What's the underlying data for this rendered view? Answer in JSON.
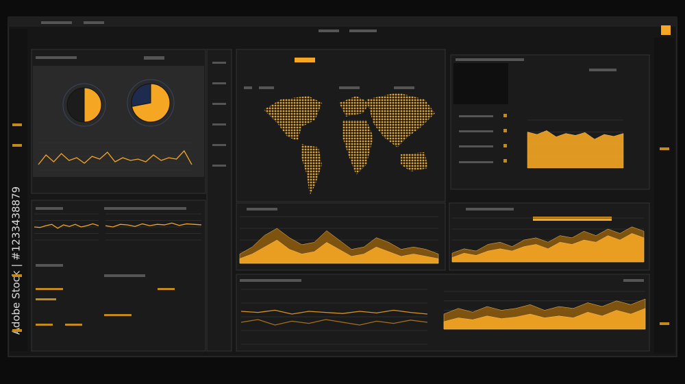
{
  "side_label": "Adobe Stock | #1233438879",
  "chart_data": [
    {
      "type": "pie",
      "values": [
        50,
        50
      ],
      "colors": [
        "#f5a623",
        "#1c1c1c"
      ],
      "ylim": [
        0,
        100
      ]
    },
    {
      "type": "pie",
      "values": [
        72,
        28
      ],
      "colors": [
        "#f5a623",
        "#1d2c4e"
      ],
      "ylim": [
        0,
        100
      ]
    },
    {
      "type": "line",
      "ylim": [
        0,
        100
      ],
      "series": [
        {
          "color": "#f5a623",
          "values": [
            20,
            55,
            30,
            60,
            35,
            45,
            25,
            50,
            40,
            65,
            30,
            45,
            35,
            40,
            30,
            55,
            35,
            45,
            40,
            70,
            20
          ]
        }
      ]
    },
    {
      "type": "line",
      "ylim": [
        0,
        100
      ],
      "series": [
        {
          "color": "#f5a623",
          "values": [
            50,
            48,
            55,
            60,
            45,
            58,
            52,
            60,
            50,
            55,
            62,
            55
          ]
        }
      ]
    },
    {
      "type": "line",
      "ylim": [
        0,
        100
      ],
      "series": [
        {
          "color": "#f5a623",
          "values": [
            55,
            50,
            60,
            58,
            52,
            62,
            55,
            60,
            58,
            65,
            56,
            62,
            60,
            58
          ]
        }
      ]
    },
    {
      "type": "area",
      "ylim": [
        0,
        100
      ],
      "series": [
        {
          "color": "#8a5a10",
          "values": [
            20,
            35,
            60,
            75,
            55,
            40,
            45,
            70,
            50,
            30,
            35,
            55,
            45,
            30,
            35,
            30,
            20
          ]
        },
        {
          "color": "#f5a623",
          "values": [
            10,
            20,
            35,
            50,
            30,
            20,
            25,
            45,
            30,
            15,
            20,
            35,
            25,
            15,
            20,
            15,
            10
          ]
        }
      ]
    },
    {
      "type": "area",
      "ylim": [
        0,
        100
      ],
      "series": [
        {
          "color": "#8a5a10",
          "values": [
            20,
            30,
            25,
            40,
            45,
            35,
            50,
            55,
            45,
            60,
            55,
            70,
            60,
            75,
            65,
            80,
            70
          ]
        },
        {
          "color": "#f5a623",
          "values": [
            10,
            20,
            15,
            25,
            30,
            25,
            35,
            40,
            30,
            45,
            40,
            50,
            45,
            60,
            50,
            65,
            55
          ]
        }
      ]
    },
    {
      "type": "line",
      "ylim": [
        0,
        100
      ],
      "series": [
        {
          "color": "#d99420",
          "values": [
            60,
            58,
            62,
            55,
            60,
            58,
            56,
            60,
            57,
            62,
            58,
            55
          ]
        },
        {
          "color": "#a87018",
          "values": [
            40,
            45,
            35,
            42,
            38,
            45,
            40,
            35,
            42,
            38,
            44,
            40
          ]
        }
      ]
    },
    {
      "type": "area",
      "ylim": [
        0,
        100
      ],
      "series": [
        {
          "color": "#8a5a10",
          "values": [
            40,
            55,
            45,
            60,
            50,
            55,
            65,
            50,
            60,
            55,
            70,
            60,
            75,
            65,
            80
          ]
        },
        {
          "color": "#f5a623",
          "values": [
            20,
            30,
            25,
            35,
            28,
            32,
            40,
            30,
            35,
            30,
            45,
            35,
            50,
            40,
            55
          ]
        }
      ]
    },
    {
      "type": "area",
      "ylim": [
        0,
        100
      ],
      "series": [
        {
          "color": "#f5a623",
          "values": [
            75,
            70,
            78,
            65,
            72,
            68,
            74,
            60,
            70,
            66,
            72
          ]
        }
      ]
    }
  ]
}
